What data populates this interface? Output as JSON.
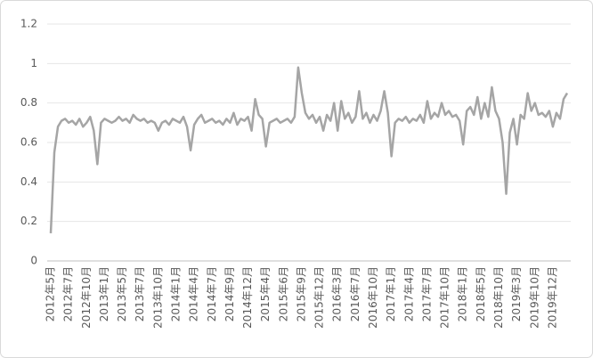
{
  "chart_data": {
    "type": "line",
    "categories": [
      "2012年5月",
      null,
      null,
      null,
      null,
      "2012年7月",
      null,
      null,
      null,
      null,
      "2012年10月",
      null,
      null,
      null,
      null,
      "2013年1月",
      null,
      null,
      null,
      null,
      "2013年5月",
      null,
      null,
      null,
      null,
      "2013年7月",
      null,
      null,
      null,
      null,
      "2013年10月",
      null,
      null,
      null,
      null,
      "2014年1月",
      null,
      null,
      null,
      null,
      "2014年4月",
      null,
      null,
      null,
      null,
      "2014年7月",
      null,
      null,
      null,
      null,
      "2014年9月",
      null,
      null,
      null,
      null,
      "2014年12月",
      null,
      null,
      null,
      null,
      "2015年4月",
      null,
      null,
      null,
      null,
      "2015年6月",
      null,
      null,
      null,
      null,
      "2015年9月",
      null,
      null,
      null,
      null,
      "2015年12月",
      null,
      null,
      null,
      null,
      "2016年3月",
      null,
      null,
      null,
      null,
      "2016年7月",
      null,
      null,
      null,
      null,
      "2016年10月",
      null,
      null,
      null,
      null,
      "2017年1月",
      null,
      null,
      null,
      null,
      "2017年4月",
      null,
      null,
      null,
      null,
      "2017年7月",
      null,
      null,
      null,
      null,
      "2017年10月",
      null,
      null,
      null,
      null,
      "2018年1月",
      null,
      null,
      null,
      null,
      "2018年5月",
      null,
      null,
      null,
      null,
      "2018年10月",
      null,
      null,
      null,
      null,
      "2019年3月",
      null,
      null,
      null,
      null,
      "2019年10月",
      null,
      null,
      null,
      null,
      "2019年12月",
      null,
      null,
      null,
      null
    ],
    "values": [
      0.14,
      0.55,
      0.68,
      0.71,
      0.72,
      0.7,
      0.71,
      0.69,
      0.72,
      0.68,
      0.7,
      0.73,
      0.66,
      0.49,
      0.7,
      0.72,
      0.71,
      0.7,
      0.71,
      0.73,
      0.71,
      0.72,
      0.7,
      0.74,
      0.72,
      0.71,
      0.72,
      0.7,
      0.71,
      0.7,
      0.66,
      0.7,
      0.71,
      0.69,
      0.72,
      0.71,
      0.7,
      0.73,
      0.68,
      0.56,
      0.69,
      0.72,
      0.74,
      0.7,
      0.71,
      0.72,
      0.7,
      0.71,
      0.69,
      0.72,
      0.7,
      0.75,
      0.69,
      0.72,
      0.71,
      0.73,
      0.66,
      0.82,
      0.74,
      0.72,
      0.58,
      0.7,
      0.71,
      0.72,
      0.7,
      0.71,
      0.72,
      0.7,
      0.73,
      0.98,
      0.85,
      0.75,
      0.72,
      0.74,
      0.7,
      0.73,
      0.66,
      0.74,
      0.71,
      0.8,
      0.66,
      0.81,
      0.72,
      0.75,
      0.7,
      0.73,
      0.86,
      0.72,
      0.75,
      0.7,
      0.74,
      0.71,
      0.76,
      0.86,
      0.75,
      0.53,
      0.7,
      0.72,
      0.71,
      0.73,
      0.7,
      0.72,
      0.71,
      0.74,
      0.7,
      0.81,
      0.72,
      0.75,
      0.73,
      0.8,
      0.74,
      0.76,
      0.73,
      0.74,
      0.71,
      0.59,
      0.76,
      0.78,
      0.74,
      0.83,
      0.72,
      0.8,
      0.73,
      0.88,
      0.76,
      0.72,
      0.6,
      0.34,
      0.65,
      0.72,
      0.59,
      0.74,
      0.72,
      0.85,
      0.76,
      0.8,
      0.74,
      0.75,
      0.73,
      0.76,
      0.68,
      0.75,
      0.72,
      0.82,
      0.85
    ],
    "color": "#a5a5a5",
    "ylim": [
      0,
      1.2
    ],
    "yticks": [
      0,
      0.2,
      0.4,
      0.6,
      0.8,
      1,
      1.2
    ],
    "grid": true
  }
}
